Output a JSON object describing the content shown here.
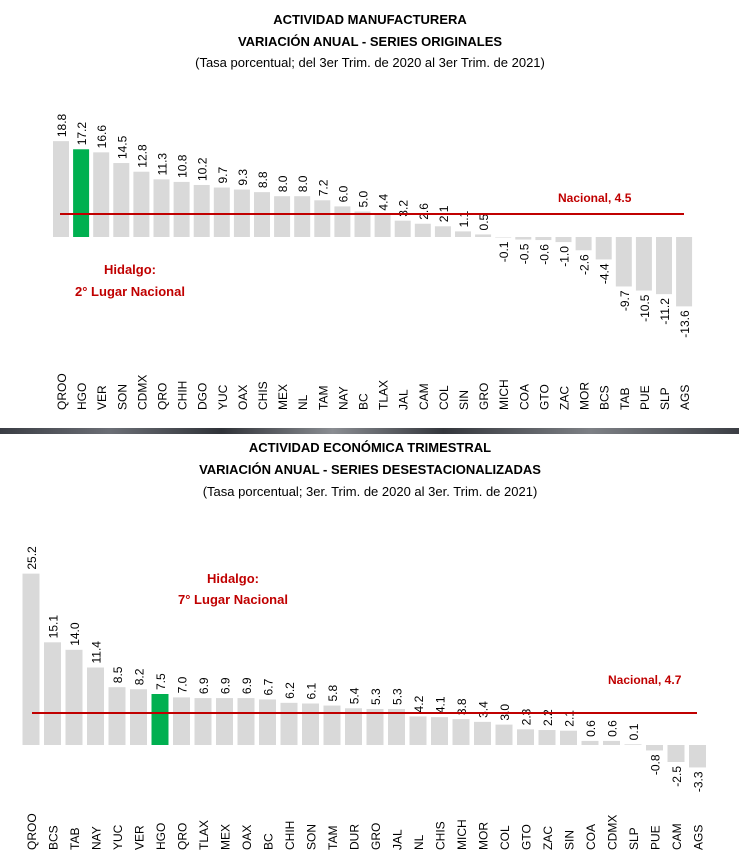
{
  "colors": {
    "bar": "#d9d9d9",
    "highlight": "#00b050",
    "national": "#c00000",
    "text": "#000000"
  },
  "chart_data": [
    {
      "type": "bar",
      "title": "ACTIVIDAD MANUFACTURERA",
      "subtitle": "VARIACIÓN ANUAL - SERIES ORIGINALES",
      "note": "(Tasa porcentual; del 3er Trim. de 2020 al 3er Trim. de 2021)",
      "categories": [
        "QROO",
        "HGO",
        "VER",
        "SON",
        "CDMX",
        "QRO",
        "CHIH",
        "DGO",
        "YUC",
        "OAX",
        "CHIS",
        "MEX",
        "NL",
        "TAM",
        "NAY",
        "BC",
        "TLAX",
        "JAL",
        "CAM",
        "COL",
        "SIN",
        "GRO",
        "MICH",
        "COA",
        "GTO",
        "ZAC",
        "MOR",
        "BCS",
        "TAB",
        "PUE",
        "SLP",
        "AGS"
      ],
      "values": [
        18.8,
        17.2,
        16.6,
        14.5,
        12.8,
        11.3,
        10.8,
        10.2,
        9.7,
        9.3,
        8.8,
        8.0,
        8.0,
        7.2,
        6.0,
        5.0,
        4.4,
        3.2,
        2.6,
        2.1,
        1.1,
        0.5,
        -0.1,
        -0.5,
        -0.6,
        -1.0,
        -2.6,
        -4.4,
        -9.7,
        -10.5,
        -11.2,
        -13.6
      ],
      "labels": [
        "18.8",
        "17.2",
        "16.6",
        "14.5",
        "12.8",
        "11.3",
        "10.8",
        "10.2",
        "9.7",
        "9.3",
        "8.8",
        "8.0",
        "8.0",
        "7.2",
        "6.0",
        "5.0",
        "4.4",
        "3.2",
        "2.6",
        "2.1",
        "1.1",
        "0.5",
        "-0.1",
        "-0.5",
        "-0.6",
        "-1.0",
        "-2.6",
        "-4.4",
        "-9.7",
        "-10.5",
        "-11.2",
        "-13.6"
      ],
      "highlight": "HGO",
      "national": {
        "value": 4.5,
        "label": "Nacional, 4.5"
      },
      "annotation": [
        "Hidalgo:",
        "2° Lugar Nacional"
      ],
      "ylim": [
        -14,
        19
      ]
    },
    {
      "type": "bar",
      "title": "ACTIVIDAD ECONÓMICA TRIMESTRAL",
      "subtitle": "VARIACIÓN ANUAL - SERIES DESESTACIONALIZADAS",
      "note": "(Tasa porcentual; 3er. Trim. de 2020 al 3er. Trim. de 2021)",
      "categories": [
        "QROO",
        "BCS",
        "TAB",
        "NAY",
        "YUC",
        "VER",
        "HGO",
        "QRO",
        "TLAX",
        "MEX",
        "OAX",
        "BC",
        "CHIH",
        "SON",
        "TAM",
        "DUR",
        "GRO",
        "JAL",
        "NL",
        "CHIS",
        "MICH",
        "MOR",
        "COL",
        "GTO",
        "ZAC",
        "SIN",
        "COA",
        "CDMX",
        "SLP",
        "PUE",
        "CAM",
        "AGS"
      ],
      "values": [
        25.2,
        15.1,
        14.0,
        11.4,
        8.5,
        8.2,
        7.5,
        7.0,
        6.9,
        6.9,
        6.9,
        6.7,
        6.2,
        6.1,
        5.8,
        5.4,
        5.3,
        5.3,
        4.2,
        4.1,
        3.8,
        3.4,
        3.0,
        2.3,
        2.2,
        2.1,
        0.6,
        0.6,
        0.1,
        -0.8,
        -2.5,
        -3.3
      ],
      "labels": [
        "25.2",
        "15.1",
        "14.0",
        "11.4",
        "8.5",
        "8.2",
        "7.5",
        "7.0",
        "6.9",
        "6.9",
        "6.9",
        "6.7",
        "6.2",
        "6.1",
        "5.8",
        "5.4",
        "5.3",
        "5.3",
        "4.2",
        "4.1",
        "3.8",
        "3.4",
        "3.0",
        "2.3",
        "2.2",
        "2.1",
        "0.6",
        "0.6",
        "0.1",
        "-0.8",
        "-2.5",
        "-3.3"
      ],
      "highlight": "HGO",
      "national": {
        "value": 4.7,
        "label": "Nacional, 4.7"
      },
      "annotation": [
        "Hidalgo:",
        "7° Lugar Nacional"
      ],
      "ylim": [
        -4,
        26
      ]
    }
  ]
}
